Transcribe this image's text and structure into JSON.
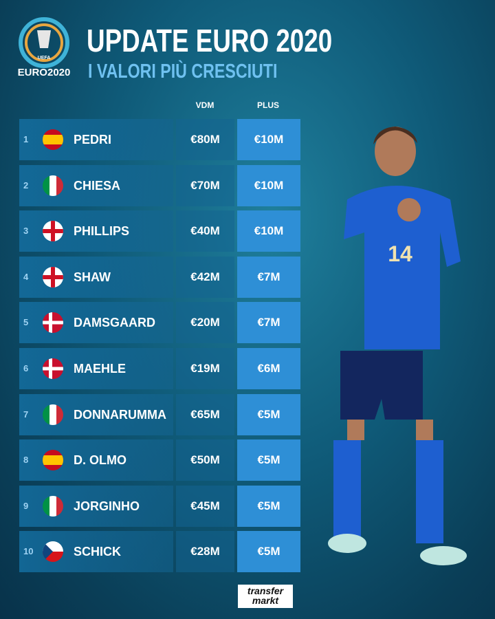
{
  "header": {
    "logo_top": "UEFA",
    "logo_text": "EURO2020",
    "title": "UPDATE EURO 2020",
    "subtitle": "I VALORI PIÙ CRESCIUTI"
  },
  "table": {
    "columns": [
      "VDM",
      "PLUS"
    ],
    "rows": [
      [
        "1",
        "PEDRI",
        "€80M",
        "€10M"
      ],
      [
        "2",
        "CHIESA",
        "€70M",
        "€10M"
      ],
      [
        "3",
        "PHILLIPS",
        "€40M",
        "€10M"
      ],
      [
        "4",
        "SHAW",
        "€42M",
        "€7M"
      ],
      [
        "5",
        "DAMSGAARD",
        "€20M",
        "€7M"
      ],
      [
        "6",
        "MAEHLE",
        "€19M",
        "€6M"
      ],
      [
        "7",
        "DONNARUMMA",
        "€65M",
        "€5M"
      ],
      [
        "8",
        "D. OLMO",
        "€50M",
        "€5M"
      ],
      [
        "9",
        "JORGINHO",
        "€45M",
        "€5M"
      ],
      [
        "10",
        "SCHICK",
        "€28M",
        "€5M"
      ]
    ]
  },
  "player": {
    "number": "14"
  },
  "footer": {
    "brand_top": "transfer",
    "brand_bottom": "markt"
  }
}
